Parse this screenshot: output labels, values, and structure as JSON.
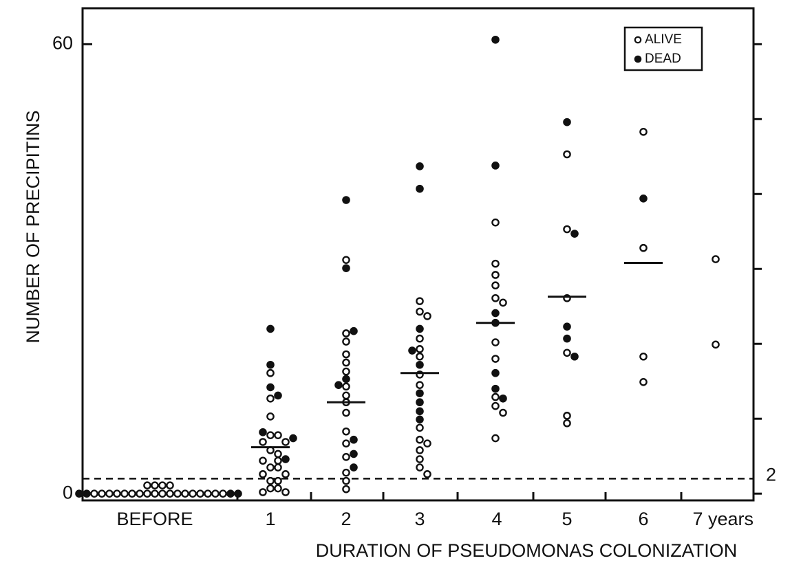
{
  "chart_data": {
    "type": "dot",
    "y_label": "NUMBER OF PRECIPITINS",
    "x_label": "DURATION OF PSEUDOMONAS COLONIZATION",
    "categories": [
      "BEFORE",
      "1",
      "2",
      "3",
      "4",
      "5",
      "6",
      "7 years"
    ],
    "series": [
      {
        "name": "ALIVE",
        "color": "#ffffff",
        "values": [
          [
            0,
            0,
            0,
            0,
            0,
            0,
            0,
            0,
            0,
            0,
            0,
            0,
            0,
            0,
            0,
            0,
            0,
            0,
            1.1,
            1.1,
            1.1,
            1.1
          ],
          [
            16.1,
            12.7,
            10.3,
            7.8,
            7.8,
            6.9,
            6.9,
            5.8,
            5.3,
            4.4,
            4.4,
            3.5,
            3.5,
            2.6,
            2.6,
            1.7,
            1.7,
            0.7,
            0.7,
            0.2,
            0.2
          ],
          [
            31.2,
            21.4,
            20.3,
            18.6,
            17.5,
            16.3,
            14.3,
            13.1,
            12.2,
            10.8,
            8.3,
            6.7,
            4.9,
            2.8,
            1.7,
            0.6
          ],
          [
            25.7,
            24.3,
            23.7,
            20.7,
            19.3,
            18.3,
            15.9,
            14.5,
            8.8,
            7.2,
            6.7,
            5.8,
            4.6,
            3.5,
            2.6
          ],
          [
            36.2,
            30.7,
            29.2,
            27.8,
            26.1,
            25.5,
            20.2,
            18.0,
            12.9,
            11.7,
            10.8,
            7.4
          ],
          [
            45.3,
            35.3,
            26.1,
            18.8,
            10.4,
            9.4
          ],
          [
            48.3,
            32.8,
            18.3,
            14.9
          ],
          [
            31.3,
            19.9
          ]
        ]
      },
      {
        "name": "DEAD",
        "color": "#111111",
        "values": [
          [
            0,
            0,
            0,
            0
          ],
          [
            22.0,
            17.2,
            14.2,
            13.1,
            8.2,
            7.4,
            4.6
          ],
          [
            39.2,
            30.1,
            21.7,
            15.3,
            14.5,
            7.2,
            5.3,
            3.5
          ],
          [
            43.7,
            40.7,
            22.0,
            19.1,
            17.2,
            13.4,
            12.2,
            11.0,
            9.9
          ],
          [
            60.6,
            43.8,
            24.1,
            22.8,
            16.1,
            14.0,
            12.7
          ],
          [
            49.6,
            34.7,
            22.3,
            20.7,
            18.3
          ],
          [
            39.4
          ],
          []
        ]
      }
    ],
    "medians": [
      null,
      6.2,
      12.2,
      16.1,
      22.8,
      26.3,
      30.8,
      null
    ],
    "threshold": 2,
    "ylim": [
      -0.9,
      64.8
    ],
    "yticks": [
      0,
      60
    ],
    "y2ticks": [
      0,
      10,
      20,
      30,
      40,
      50,
      60
    ],
    "legend": "top-right"
  }
}
